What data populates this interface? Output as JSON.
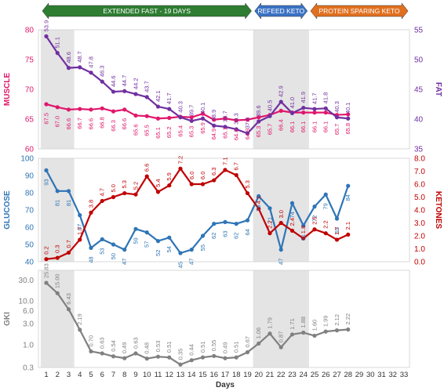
{
  "banners": [
    {
      "label": "EXTENDED FAST - 19 DAYS",
      "from": 1,
      "to": 19,
      "color": "#2e7d32"
    },
    {
      "label": "REFEED KETO",
      "from": 20,
      "to": 24,
      "color": "#3a72c4"
    },
    {
      "label": "PROTEIN SPARING KETO",
      "from": 25,
      "to": 33,
      "color": "#e07020"
    }
  ],
  "shaded_ranges": [
    [
      1,
      3
    ],
    [
      20,
      24
    ]
  ],
  "chart_data": [
    {
      "type": "line",
      "title": "",
      "x": [
        1,
        2,
        3,
        4,
        5,
        6,
        7,
        8,
        9,
        10,
        11,
        12,
        13,
        14,
        15,
        16,
        17,
        18,
        19,
        20,
        21,
        22,
        23,
        24,
        25,
        26,
        27,
        28
      ],
      "series": [
        {
          "name": "MUSCLE",
          "axis": "left",
          "color": "#e0176c",
          "values": [
            67.5,
            67.0,
            66.6,
            66.7,
            66.6,
            66.8,
            66.3,
            66.6,
            65.6,
            65.5,
            65.1,
            65.2,
            65.4,
            65.3,
            65.9,
            64.9,
            65.1,
            64.8,
            64.9,
            65.3,
            65.7,
            66.4,
            66.1,
            66.1,
            66.1,
            66.1,
            65.7,
            65.8
          ]
        },
        {
          "name": "FAT",
          "axis": "right",
          "color": "#7030a0",
          "values": [
            53.9,
            51.1,
            48.6,
            48.7,
            47.8,
            46.3,
            44.6,
            44.7,
            44.2,
            43.7,
            42.1,
            41.7,
            40.3,
            39.7,
            40.1,
            38.9,
            38.7,
            38.3,
            37.6,
            39.6,
            40.5,
            42.9,
            41.0,
            41.9,
            41.7,
            41.8,
            40.3,
            40.1
          ]
        }
      ],
      "y_left": {
        "label": "MUSCLE",
        "lim": [
          60,
          80
        ],
        "ticks": [
          60,
          65,
          70,
          75,
          80
        ]
      },
      "y_right": {
        "label": "FAT",
        "lim": [
          35,
          55
        ],
        "ticks": [
          35,
          40,
          45,
          50,
          55
        ]
      }
    },
    {
      "type": "line",
      "title": "",
      "x": [
        1,
        2,
        3,
        4,
        5,
        6,
        7,
        8,
        9,
        10,
        11,
        12,
        13,
        14,
        15,
        16,
        17,
        18,
        19,
        20,
        21,
        22,
        23,
        24,
        25,
        26,
        27,
        28
      ],
      "series": [
        {
          "name": "GLUCOSE",
          "axis": "left",
          "color": "#2e75b6",
          "values": [
            93,
            81,
            81,
            67,
            48,
            53,
            50,
            47,
            59,
            57,
            52,
            54,
            45,
            47,
            55,
            62,
            63,
            62,
            64,
            78,
            71,
            47,
            74,
            61,
            72,
            79,
            65,
            84
          ]
        },
        {
          "name": "KETONES",
          "axis": "right",
          "color": "#c00000",
          "values": [
            0.2,
            0.3,
            0.7,
            1.7,
            3.8,
            4.7,
            5.0,
            5.3,
            5.2,
            6.6,
            5.4,
            5.9,
            7.2,
            6.0,
            6.0,
            6.3,
            7.1,
            6.7,
            5.3,
            4.1,
            2.2,
            3.0,
            2.4,
            1.8,
            2.5,
            2.2,
            1.7,
            2.1
          ]
        }
      ],
      "y_left": {
        "label": "GLUCOSE",
        "lim": [
          40,
          100
        ],
        "ticks": [
          40,
          50,
          60,
          70,
          80,
          90,
          100
        ]
      },
      "y_right": {
        "label": "KETONES",
        "lim": [
          0.0,
          8.0
        ],
        "ticks": [
          "0.0",
          "1.0",
          "2.0",
          "3.0",
          "4.0",
          "5.0",
          "6.0",
          "7.0",
          "8.0"
        ]
      }
    },
    {
      "type": "line",
      "title": "",
      "x": [
        1,
        2,
        3,
        4,
        5,
        6,
        7,
        8,
        9,
        10,
        11,
        12,
        13,
        14,
        15,
        16,
        17,
        18,
        19,
        20,
        21,
        22,
        23,
        24,
        25,
        26,
        27,
        28
      ],
      "series": [
        {
          "name": "GKI",
          "axis": "left",
          "color": "#808080",
          "values": [
            25.83,
            15.0,
            6.43,
            2.19,
            0.7,
            0.63,
            0.54,
            0.49,
            0.63,
            0.48,
            0.53,
            0.51,
            0.35,
            0.44,
            0.51,
            0.55,
            0.49,
            0.51,
            0.67,
            1.06,
            1.79,
            0.87,
            1.71,
            1.88,
            1.6,
            1.99,
            2.12,
            2.22
          ]
        }
      ],
      "y_left": {
        "label": "GKI",
        "scale": "log",
        "lim": [
          0.3,
          50
        ],
        "ticks": [
          "0.3",
          "1.0",
          "3.0",
          "6.0",
          "10.0",
          "30.0"
        ]
      },
      "xlabel": "Days",
      "x_ticks": [
        1,
        2,
        3,
        4,
        5,
        6,
        7,
        8,
        9,
        10,
        11,
        12,
        13,
        14,
        15,
        16,
        17,
        18,
        19,
        20,
        21,
        22,
        23,
        24,
        25,
        26,
        27,
        28,
        29,
        30,
        31,
        32,
        33
      ]
    }
  ]
}
